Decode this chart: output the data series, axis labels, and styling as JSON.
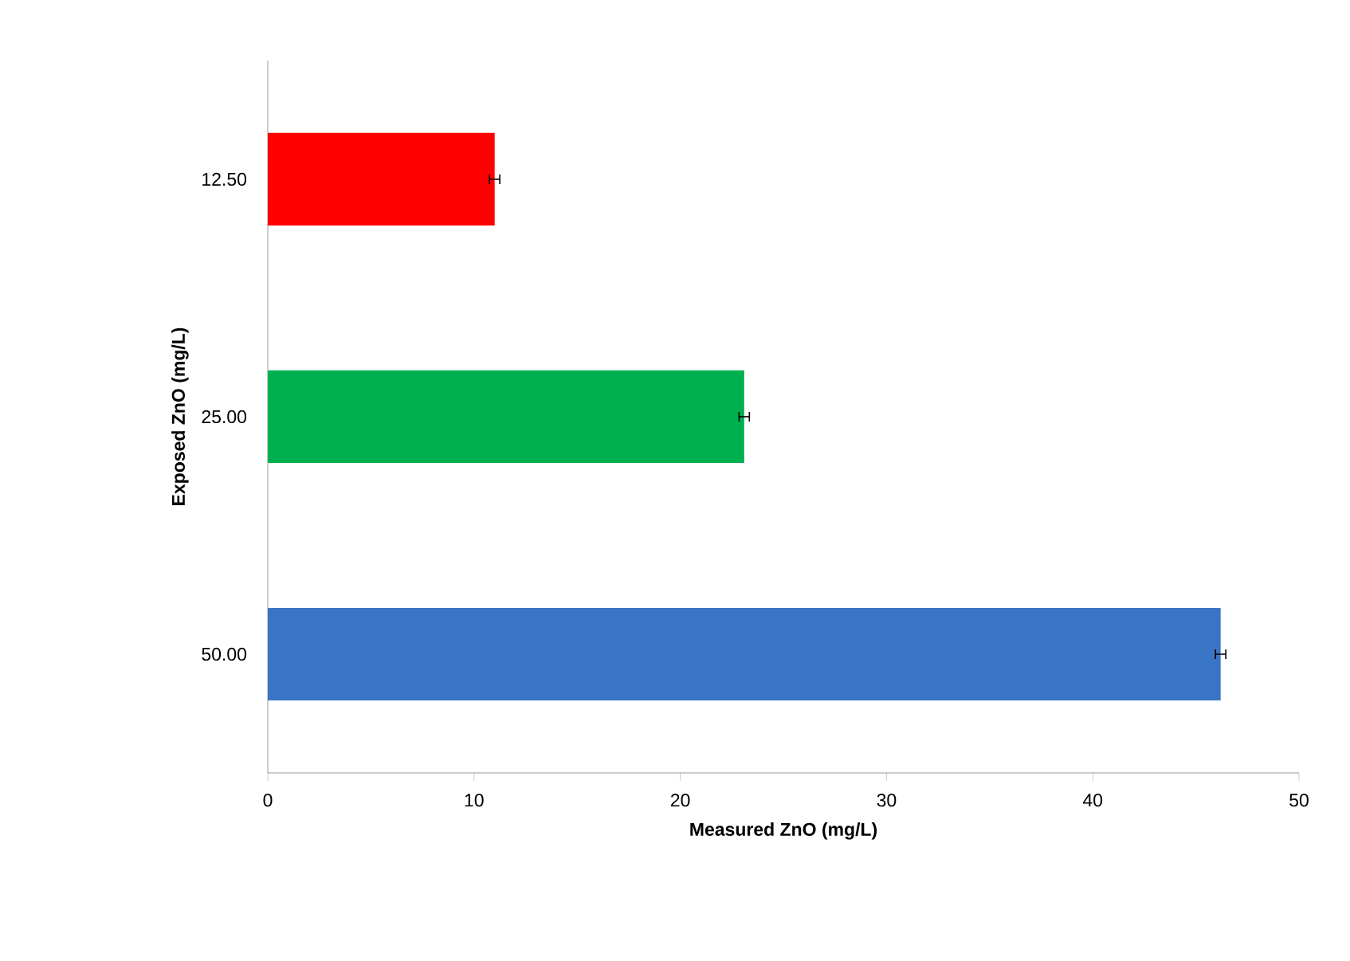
{
  "chart_data": {
    "type": "bar",
    "orientation": "horizontal",
    "xlabel": "Measured ZnO  (mg/L)",
    "ylabel": "Exposed ZnO (mg/L)",
    "categories": [
      "12.50",
      "25.00",
      "50.00"
    ],
    "values": [
      11.0,
      23.1,
      46.2
    ],
    "errors": [
      0.25,
      0.25,
      0.25
    ],
    "colors": [
      "#ff0000",
      "#00b050",
      "#3a74c4"
    ],
    "xlim": [
      0,
      50
    ],
    "xticks": [
      0,
      10,
      20,
      30,
      40,
      50
    ],
    "grid": false
  }
}
